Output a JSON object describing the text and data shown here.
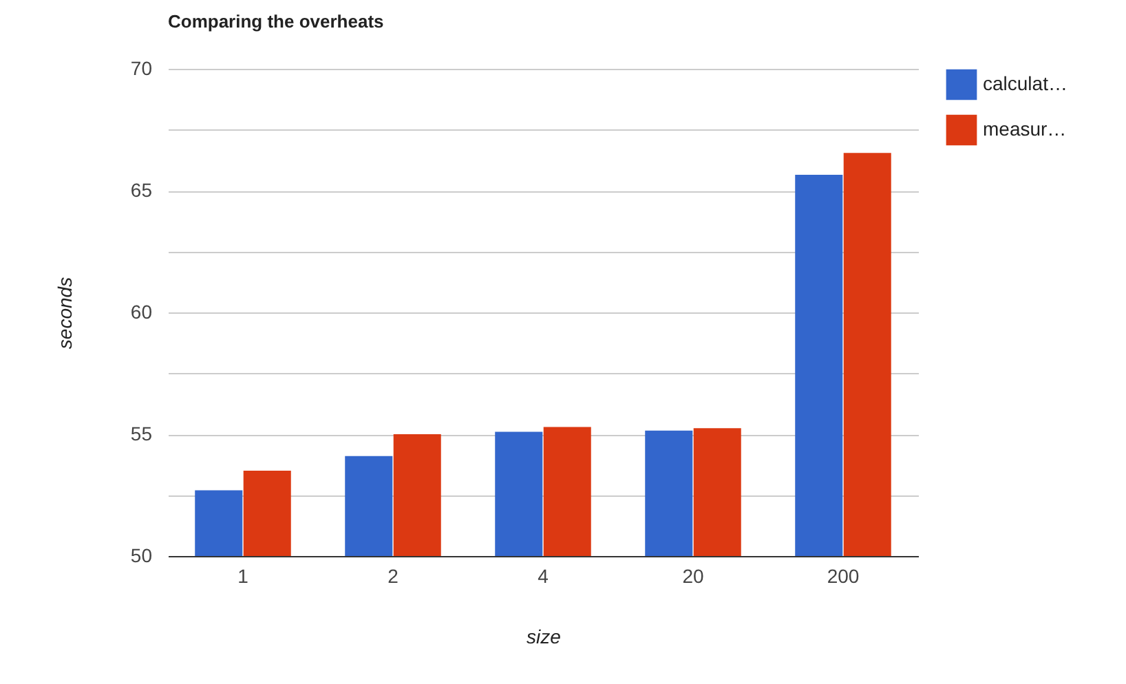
{
  "chart_data": {
    "type": "bar",
    "title": "Comparing the overheats",
    "xlabel": "size",
    "ylabel": "seconds",
    "categories": [
      "1",
      "2",
      "4",
      "20",
      "200"
    ],
    "series": [
      {
        "name": "calculat…",
        "color": "#3366cc",
        "values": [
          52.7,
          54.1,
          55.1,
          55.15,
          65.65
        ]
      },
      {
        "name": "measur…",
        "color": "#dc3912",
        "values": [
          53.5,
          55.0,
          55.3,
          55.25,
          66.55
        ]
      }
    ],
    "ylim": [
      50,
      70
    ],
    "yticks": [
      50,
      {
        "value": 52.5,
        "label": null
      },
      55,
      {
        "value": 57.5,
        "label": null
      },
      60,
      {
        "value": 62.5,
        "label": null
      },
      65,
      {
        "value": 67.5,
        "label": null
      },
      70
    ],
    "grid": true,
    "legend": "top right"
  }
}
